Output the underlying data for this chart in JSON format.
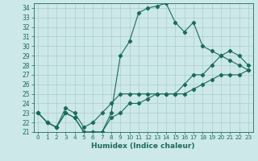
{
  "title": "",
  "xlabel": "Humidex (Indice chaleur)",
  "background_color": "#cde8e8",
  "grid_color": "#aacece",
  "line_color": "#1a6b5a",
  "xlim": [
    -0.5,
    23.5
  ],
  "ylim": [
    21,
    34.5
  ],
  "yticks": [
    21,
    22,
    23,
    24,
    25,
    26,
    27,
    28,
    29,
    30,
    31,
    32,
    33,
    34
  ],
  "xticks": [
    0,
    1,
    2,
    3,
    4,
    5,
    6,
    7,
    8,
    9,
    10,
    11,
    12,
    13,
    14,
    15,
    16,
    17,
    18,
    19,
    20,
    21,
    22,
    23
  ],
  "line1_x": [
    0,
    1,
    2,
    3,
    4,
    5,
    6,
    7,
    8,
    9,
    10,
    11,
    12,
    13,
    14,
    15,
    16,
    17,
    18,
    19,
    20,
    21,
    22,
    23
  ],
  "line1_y": [
    23,
    22,
    21.5,
    23,
    22.5,
    21,
    21,
    21,
    23,
    29,
    30.5,
    33.5,
    34,
    34.2,
    34.5,
    32.5,
    31.5,
    32.5,
    30,
    29.5,
    29,
    28.5,
    28,
    27.5
  ],
  "line2_x": [
    0,
    1,
    2,
    3,
    4,
    5,
    6,
    7,
    8,
    9,
    10,
    11,
    12,
    13,
    14,
    15,
    16,
    17,
    18,
    19,
    20,
    21,
    22,
    23
  ],
  "line2_y": [
    23,
    22,
    21.5,
    23.5,
    23,
    21.5,
    22,
    23,
    24,
    25,
    25,
    25,
    25,
    25,
    25,
    25,
    26,
    27,
    27,
    28,
    29,
    29.5,
    29,
    28
  ],
  "line3_x": [
    0,
    1,
    2,
    3,
    4,
    5,
    6,
    7,
    8,
    9,
    10,
    11,
    12,
    13,
    14,
    15,
    16,
    17,
    18,
    19,
    20,
    21,
    22,
    23
  ],
  "line3_y": [
    23,
    22,
    21.5,
    23,
    22.5,
    21,
    21,
    21,
    22.5,
    23,
    24,
    24,
    24.5,
    25,
    25,
    25,
    25,
    25.5,
    26,
    26.5,
    27,
    27,
    27,
    27.5
  ]
}
